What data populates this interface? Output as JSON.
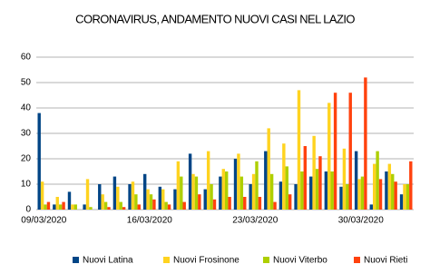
{
  "chart_data": {
    "type": "bar",
    "title": "CORONAVIRUS, ANDAMENTO NUOVI CASI NEL LAZIO",
    "categories": [
      "09/03/2020",
      null,
      null,
      null,
      null,
      null,
      null,
      "16/03/2020",
      null,
      null,
      null,
      null,
      null,
      null,
      "23/03/2020",
      null,
      null,
      null,
      null,
      null,
      null,
      "30/03/2020",
      null,
      null,
      null
    ],
    "series": [
      {
        "name": "Nuovi Latina",
        "color": "#004586",
        "values": [
          38,
          2,
          7,
          2,
          10,
          13,
          10,
          14,
          9,
          8,
          22,
          8,
          13,
          20,
          10,
          23,
          11,
          10,
          13,
          15,
          9,
          23,
          2,
          15,
          6
        ]
      },
      {
        "name": "Nuovi Frosinone",
        "color": "#ffd320",
        "values": [
          11,
          5,
          2,
          12,
          6,
          9,
          11,
          8,
          8,
          19,
          14,
          23,
          16,
          22,
          14,
          32,
          26,
          47,
          29,
          42,
          24,
          12,
          18,
          18,
          10
        ]
      },
      {
        "name": "Nuovi Viterbo",
        "color": "#aecf00",
        "values": [
          2,
          2,
          2,
          1,
          3,
          3,
          6,
          6,
          3,
          13,
          13,
          10,
          15,
          13,
          19,
          14,
          17,
          15,
          16,
          15,
          10,
          13,
          23,
          14,
          10
        ]
      },
      {
        "name": "Nuovi Rieti",
        "color": "#ff420e",
        "values": [
          3,
          3,
          0,
          0,
          1,
          1,
          2,
          4,
          2,
          3,
          6,
          4,
          5,
          5,
          5,
          3,
          6,
          25,
          21,
          46,
          46,
          52,
          12,
          11,
          19
        ]
      }
    ],
    "ylim": [
      0,
      60
    ],
    "yticks": [
      0,
      10,
      20,
      30,
      40,
      50,
      60
    ],
    "grid": true,
    "legend": "bottom"
  }
}
